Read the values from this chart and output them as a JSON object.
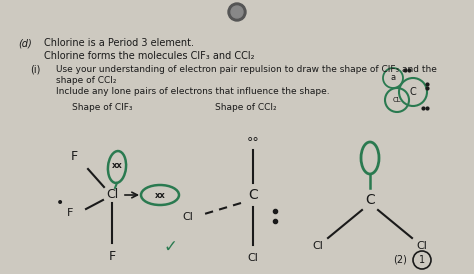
{
  "bg_color": "#cdc9c0",
  "text_color": "#1a1a1a",
  "green_color": "#2a7a50",
  "dark_color": "#1a1a1a",
  "title_d": "(d)",
  "line1": "Chlorine is a Period 3 element.",
  "line2": "Chlorine forms the molecules ClF₃ and CCl₂",
  "part_i": "(i)",
  "part_i_text1": "Use your understanding of electron pair repulsion to draw the shape of ClF₃ and the",
  "part_i_text2": "shape of CCl₂",
  "part_i_text3": "Include any lone pairs of electrons that influence the shape.",
  "shape_cif3_label": "Shape of ClF₃",
  "shape_ccl2_label": "Shape of CCl₂",
  "score_label": "(2)",
  "score_num": "1"
}
